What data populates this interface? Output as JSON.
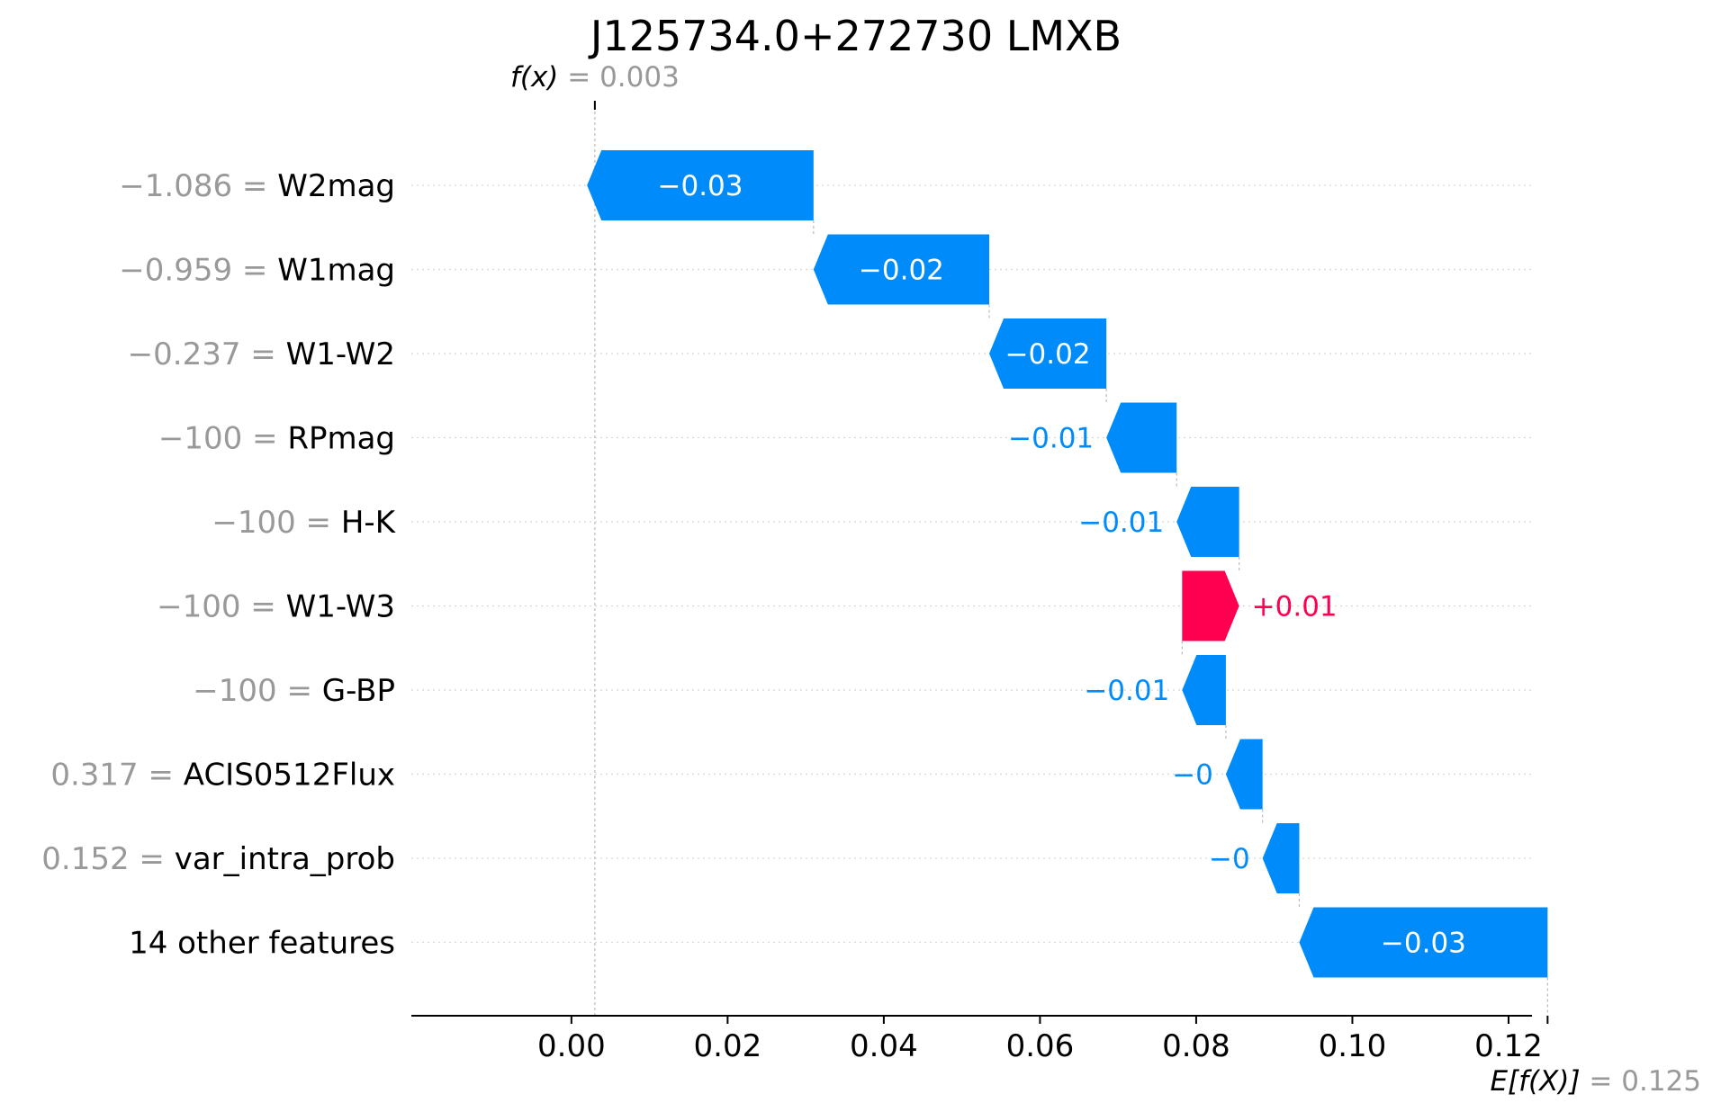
{
  "chart_data": {
    "type": "bar",
    "subtype": "waterfall",
    "title": "J125734.0+272730 LMXB",
    "fx": {
      "label": "f(x)",
      "value": 0.003,
      "display": "= 0.003"
    },
    "efx": {
      "label": "E[f(X)]",
      "value": 0.125,
      "display": "= 0.125"
    },
    "xlim": [
      -0.0205,
      0.123
    ],
    "x_ticks": [
      0.0,
      0.02,
      0.04,
      0.06,
      0.08,
      0.1,
      0.12
    ],
    "x_tick_labels": [
      "0.00",
      "0.02",
      "0.04",
      "0.06",
      "0.08",
      "0.10",
      "0.12"
    ],
    "colors": {
      "negative": "#008bfb",
      "positive": "#ff0051",
      "value_text": "#999999"
    },
    "features": [
      {
        "value_label": "−1.086",
        "name": "W2mag",
        "contribution": -0.029,
        "label": "−0.03"
      },
      {
        "value_label": "−0.959",
        "name": "W1mag",
        "contribution": -0.0225,
        "label": "−0.02"
      },
      {
        "value_label": "−0.237",
        "name": "W1-W2",
        "contribution": -0.015,
        "label": "−0.02"
      },
      {
        "value_label": "−100",
        "name": "RPmag",
        "contribution": -0.009,
        "label": "−0.01"
      },
      {
        "value_label": "−100",
        "name": "H-K",
        "contribution": -0.008,
        "label": "−0.01"
      },
      {
        "value_label": "−100",
        "name": "W1-W3",
        "contribution": 0.0073,
        "label": "+0.01"
      },
      {
        "value_label": "−100",
        "name": "G-BP",
        "contribution": -0.0056,
        "label": "−0.01"
      },
      {
        "value_label": "0.317",
        "name": "ACIS0512Flux",
        "contribution": -0.0047,
        "label": "−0"
      },
      {
        "value_label": "0.152",
        "name": "var_intra_prob",
        "contribution": -0.0047,
        "label": "−0"
      },
      {
        "value_label": "",
        "name": "14 other features",
        "contribution": -0.0318,
        "label": "−0.03"
      }
    ]
  }
}
